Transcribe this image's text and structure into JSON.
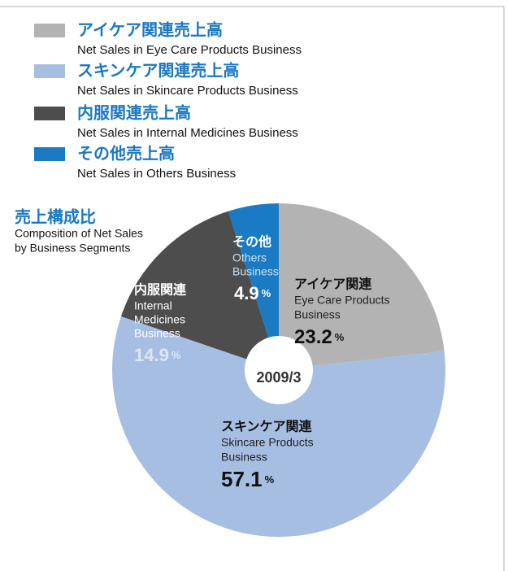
{
  "chart_data": {
    "type": "pie",
    "title": "売上構成比",
    "subtitle": [
      "Composition of Net Sales",
      "by Business Segments"
    ],
    "center_label": "2009/3",
    "legend": [
      {
        "name": "アイケア関連売上高",
        "description": "Net Sales in Eye Care Products Business"
      },
      {
        "name": "スキンケア関連売上高",
        "description": "Net Sales in Skincare Products Business"
      },
      {
        "name": "内服関連売上高",
        "description": "Net Sales in Internal Medicines Business"
      },
      {
        "name": "その他売上高",
        "description": "Net Sales in Others Business"
      }
    ],
    "categories": [
      "アイケア関連",
      "スキンケア関連",
      "内服関連",
      "その他"
    ],
    "category_descriptions": [
      [
        "Eye Care Products",
        "Business"
      ],
      [
        "Skincare Products",
        "Business"
      ],
      [
        "Internal",
        "Medicines",
        "Business"
      ],
      [
        "Others",
        "Business"
      ]
    ],
    "values": [
      23.2,
      57.1,
      14.9,
      4.9
    ],
    "unit": "%",
    "colors": [
      "#b3b3b3",
      "#a7bee3",
      "#4d4d4d",
      "#1a7bc4"
    ]
  }
}
